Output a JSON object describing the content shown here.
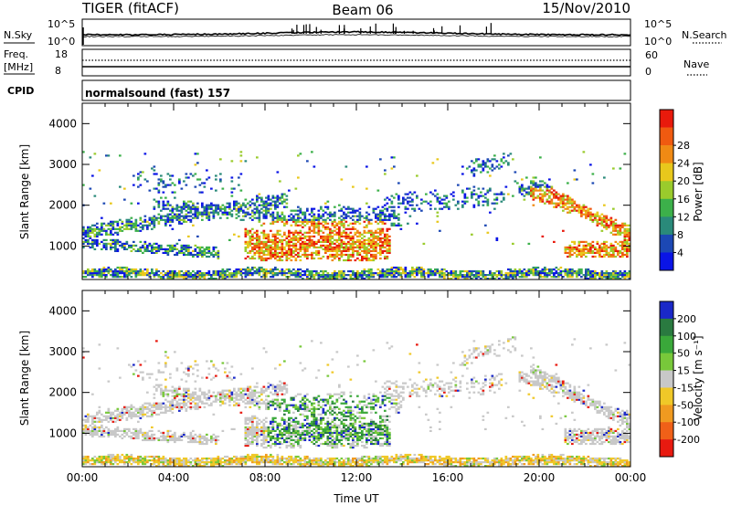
{
  "header": {
    "title_left": "TIGER (fitACF)",
    "title_center": "Beam 06",
    "title_right": "15/Nov/2010"
  },
  "top_panels": {
    "nsky_label": "N.Sky",
    "nsearch_label": "N.Search",
    "nsky_ticks": [
      "10^5",
      "10^0"
    ],
    "nsearch_ticks": [
      "10^5",
      "10^0"
    ],
    "freq_label_line1": "Freq.",
    "freq_label_line2": "[MHz]",
    "freq_ticks": [
      "18",
      "8"
    ],
    "nave_label": "Nave",
    "nave_ticks": [
      "60",
      "0"
    ],
    "cpid_label": "CPID",
    "cpid_text": "normalsound (fast) 157"
  },
  "chart_data": [
    {
      "type": "heatmap",
      "name": "power",
      "xlabel": "",
      "ylabel": "Slant Range [km]",
      "xlim": [
        0,
        24
      ],
      "ylim": [
        180,
        4500
      ],
      "yticks": [
        "1000",
        "2000",
        "3000",
        "4000"
      ],
      "colorbar": {
        "label": "Power [dB]",
        "ticks": [
          "4",
          "8",
          "12",
          "16",
          "20",
          "24",
          "28"
        ],
        "colors": [
          "#0a14e6",
          "#1c48b4",
          "#2a8a7a",
          "#3cb04a",
          "#9acb2c",
          "#e8c81c",
          "#f08a14",
          "#f05a10",
          "#e81a0c"
        ]
      }
    },
    {
      "type": "heatmap",
      "name": "velocity",
      "xlabel": "Time UT",
      "ylabel": "Slant Range [km]",
      "xlim": [
        0,
        24
      ],
      "ylim": [
        180,
        4500
      ],
      "xticks": [
        "00:00",
        "04:00",
        "08:00",
        "12:00",
        "16:00",
        "20:00",
        "00:00"
      ],
      "yticks": [
        "1000",
        "2000",
        "3000",
        "4000"
      ],
      "colorbar": {
        "label": "Velocity [m s⁻¹]",
        "ticks": [
          "200",
          "100",
          "50",
          "15",
          "-15",
          "-50",
          "-100",
          "-200"
        ],
        "colors": [
          "#1a28c8",
          "#2a7a40",
          "#3aa83a",
          "#78c83a",
          "#c8c8c8",
          "#f0c828",
          "#f09a20",
          "#f06018",
          "#e81a10"
        ]
      }
    }
  ]
}
